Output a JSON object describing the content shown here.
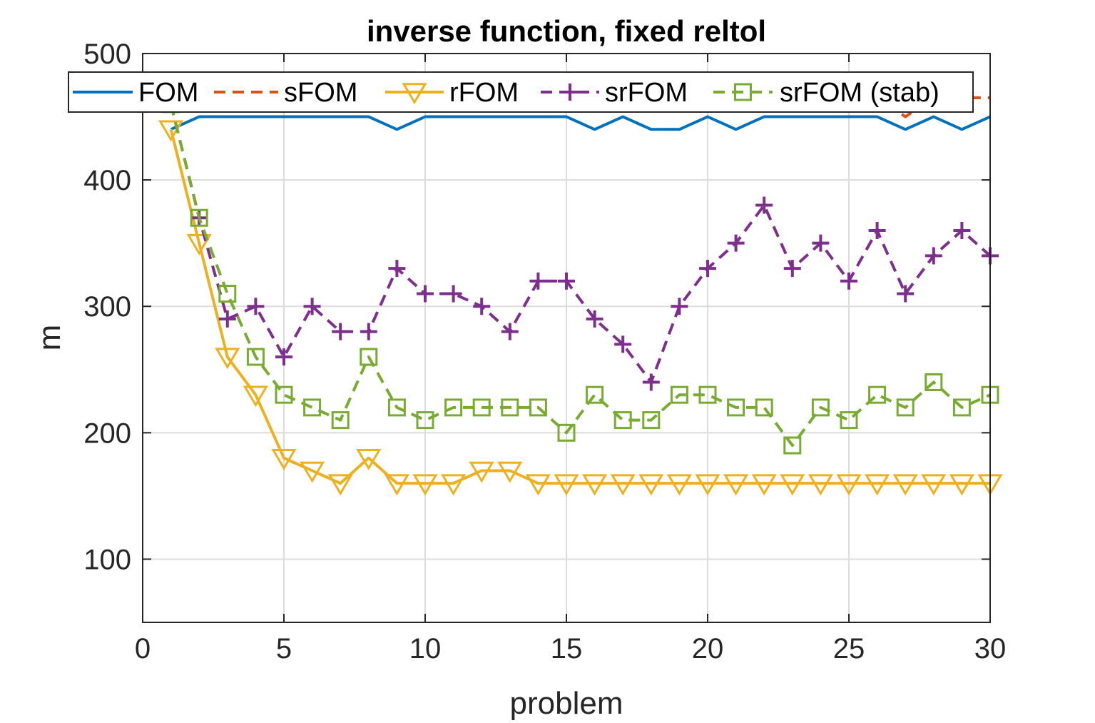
{
  "chart_data": {
    "type": "line",
    "title": "inverse function, fixed reltol",
    "xlabel": "problem",
    "ylabel": "m",
    "xlim": [
      0,
      30
    ],
    "ylim": [
      50,
      500
    ],
    "xticks": [
      0,
      5,
      10,
      15,
      20,
      25,
      30
    ],
    "yticks": [
      100,
      200,
      300,
      400,
      500
    ],
    "grid": true,
    "legend": "top, horizontal",
    "x": [
      1,
      2,
      3,
      4,
      5,
      6,
      7,
      8,
      9,
      10,
      11,
      12,
      13,
      14,
      15,
      16,
      17,
      18,
      19,
      20,
      21,
      22,
      23,
      24,
      25,
      26,
      27,
      28,
      29,
      30
    ],
    "series": [
      {
        "name": "FOM",
        "color": "#0072BD",
        "line": "solid",
        "marker": "none",
        "values": [
          440,
          450,
          450,
          450,
          450,
          450,
          450,
          450,
          440,
          450,
          450,
          450,
          450,
          450,
          450,
          440,
          450,
          440,
          440,
          450,
          440,
          450,
          450,
          450,
          450,
          450,
          440,
          450,
          440,
          450
        ]
      },
      {
        "name": "sFOM",
        "color": "#D95319",
        "line": "dashed",
        "marker": "none",
        "values": [
          460,
          465,
          465,
          465,
          465,
          465,
          465,
          465,
          465,
          465,
          465,
          465,
          465,
          465,
          455,
          465,
          465,
          465,
          465,
          465,
          465,
          465,
          465,
          465,
          465,
          465,
          450,
          465,
          465,
          465
        ]
      },
      {
        "name": "rFOM",
        "color": "#EDB120",
        "line": "solid",
        "marker": "triangle-down",
        "values": [
          440,
          350,
          260,
          230,
          180,
          170,
          160,
          180,
          160,
          160,
          160,
          170,
          170,
          160,
          160,
          160,
          160,
          160,
          160,
          160,
          160,
          160,
          160,
          160,
          160,
          160,
          160,
          160,
          160,
          160
        ]
      },
      {
        "name": "srFOM",
        "color": "#7E2F8E",
        "line": "dashed",
        "marker": "plus",
        "values": [
          460,
          370,
          290,
          300,
          260,
          300,
          280,
          280,
          330,
          310,
          310,
          300,
          280,
          320,
          320,
          290,
          270,
          240,
          300,
          330,
          350,
          380,
          330,
          350,
          320,
          360,
          310,
          340,
          360,
          340
        ]
      },
      {
        "name": "srFOM (stab)",
        "color": "#77AC30",
        "line": "dashed",
        "marker": "square",
        "values": [
          460,
          370,
          310,
          260,
          230,
          220,
          210,
          260,
          220,
          210,
          220,
          220,
          220,
          220,
          200,
          230,
          210,
          210,
          230,
          230,
          220,
          220,
          190,
          220,
          210,
          230,
          220,
          240,
          220,
          230
        ]
      }
    ]
  }
}
